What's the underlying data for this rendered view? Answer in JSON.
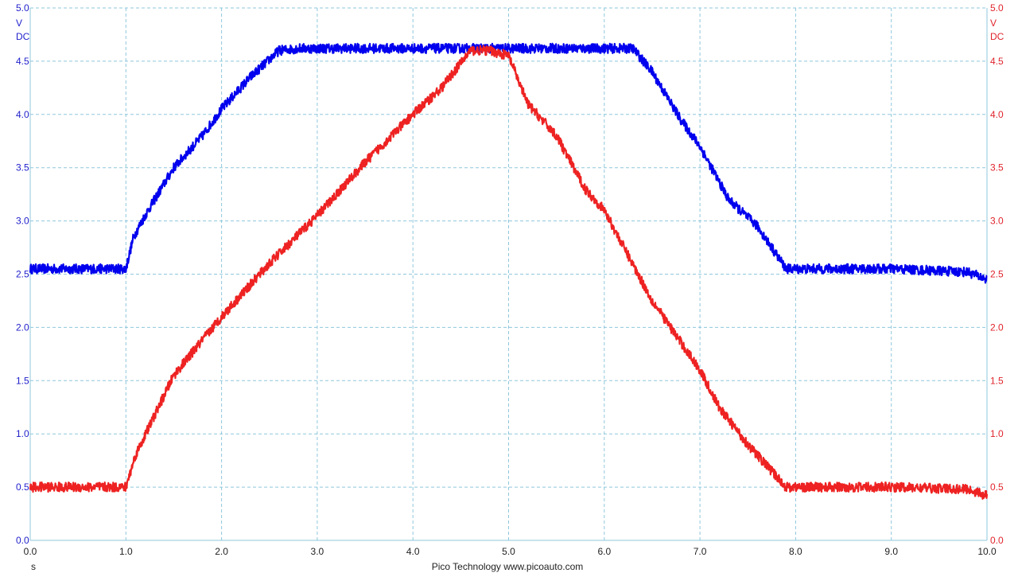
{
  "footer": {
    "credit": "Pico Technology   www.picoauto.com"
  },
  "chart_data": {
    "type": "line",
    "title": "",
    "xlabel": "",
    "x_unit": "s",
    "xlim": [
      0,
      10
    ],
    "x_ticks": [
      "0.0",
      "1.0",
      "2.0",
      "3.0",
      "4.0",
      "5.0",
      "6.0",
      "7.0",
      "8.0",
      "9.0",
      "10.0"
    ],
    "y_axes": {
      "left": {
        "unit": "V",
        "coupling": "DC",
        "ylim": [
          0,
          5
        ],
        "color": "#1f1fcc"
      },
      "right": {
        "unit": "V",
        "coupling": "DC",
        "ylim": [
          0,
          5
        ],
        "color": "#e0242c"
      }
    },
    "y_ticks": [
      "0.0",
      "0.5",
      "1.0",
      "1.5",
      "2.0",
      "2.5",
      "3.0",
      "3.5",
      "4.0",
      "4.5",
      "5.0"
    ],
    "grid": true,
    "legend": "none",
    "series": [
      {
        "axis": "left",
        "color": "#0000ee",
        "x": [
          0.0,
          1.0,
          1.08,
          1.2,
          1.5,
          1.8,
          2.0,
          2.3,
          2.6,
          2.8,
          4.0,
          5.0,
          6.0,
          6.3,
          6.5,
          6.8,
          7.0,
          7.3,
          7.6,
          7.9,
          8.0,
          9.0,
          9.8,
          10.0
        ],
        "y": [
          2.55,
          2.55,
          2.85,
          3.05,
          3.5,
          3.8,
          4.05,
          4.35,
          4.6,
          4.62,
          4.62,
          4.62,
          4.62,
          4.62,
          4.4,
          3.95,
          3.7,
          3.2,
          2.95,
          2.55,
          2.55,
          2.55,
          2.52,
          2.45
        ]
      },
      {
        "axis": "right",
        "color": "#ee2222",
        "x": [
          0.0,
          1.0,
          1.1,
          1.5,
          2.0,
          2.5,
          3.0,
          3.5,
          4.0,
          4.3,
          4.6,
          4.8,
          5.0,
          5.2,
          5.5,
          5.8,
          6.0,
          6.5,
          7.0,
          7.2,
          7.5,
          7.8,
          7.9,
          8.0,
          9.0,
          9.8,
          10.0
        ],
        "y": [
          0.5,
          0.5,
          0.8,
          1.55,
          2.1,
          2.6,
          3.05,
          3.55,
          4.0,
          4.25,
          4.6,
          4.6,
          4.55,
          4.1,
          3.8,
          3.3,
          3.1,
          2.25,
          1.6,
          1.25,
          0.9,
          0.6,
          0.5,
          0.5,
          0.5,
          0.48,
          0.42
        ]
      }
    ]
  }
}
